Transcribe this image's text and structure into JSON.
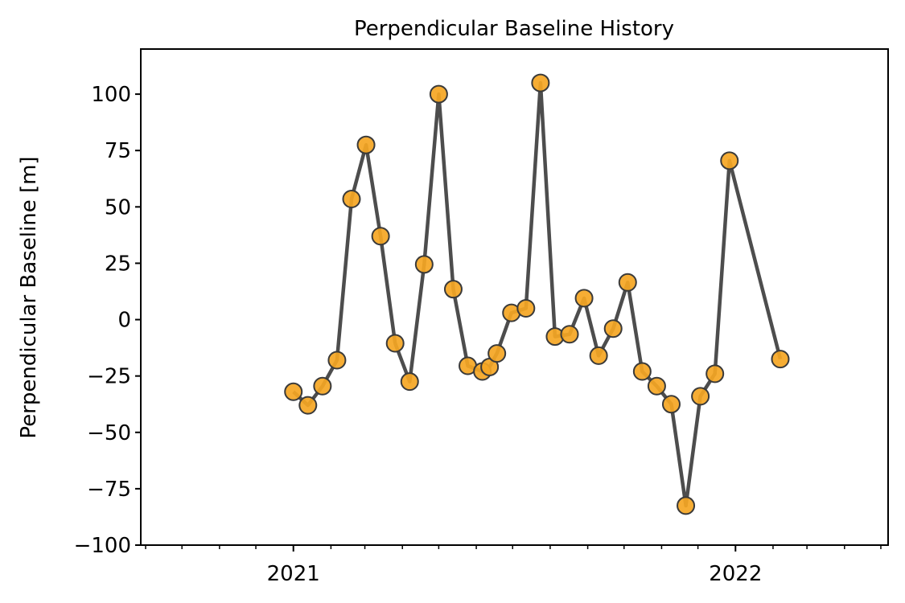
{
  "chart_data": {
    "type": "line",
    "title": "Perpendicular Baseline History",
    "xlabel": "",
    "ylabel": "Perpendicular Baseline [m]",
    "ylim": [
      -100,
      120
    ],
    "xlim": [
      "2020-08-28",
      "2022-05-07"
    ],
    "x_major_ticks": [
      "2021-01-01",
      "2022-01-01"
    ],
    "x_major_tick_labels": [
      "2021",
      "2022"
    ],
    "x_minor_ticks": [
      "2020-09-01",
      "2020-10-01",
      "2020-11-01",
      "2020-12-01",
      "2021-02-01",
      "2021-03-01",
      "2021-04-01",
      "2021-05-01",
      "2021-06-01",
      "2021-07-01",
      "2021-08-01",
      "2021-09-01",
      "2021-10-01",
      "2021-11-01",
      "2021-12-01",
      "2022-02-01",
      "2022-03-01",
      "2022-04-01",
      "2022-05-01"
    ],
    "y_ticks": [
      100,
      75,
      50,
      25,
      0,
      -25,
      -50,
      -75,
      -100
    ],
    "y_tick_labels": [
      "100",
      "75",
      "50",
      "25",
      "0",
      "−25",
      "−50",
      "−75",
      "−100"
    ],
    "grid": false,
    "line_color": "#4d4d4d",
    "marker_face_color": "#f5a623",
    "marker_edge_color": "#3a3a3a",
    "series": [
      {
        "x": [
          "2021-01-01",
          "2021-01-13",
          "2021-01-25",
          "2021-02-06",
          "2021-02-18",
          "2021-03-02",
          "2021-03-14",
          "2021-03-26",
          "2021-04-07",
          "2021-04-19",
          "2021-05-01",
          "2021-05-13",
          "2021-05-25",
          "2021-06-06",
          "2021-06-12",
          "2021-06-18",
          "2021-06-30",
          "2021-07-12",
          "2021-07-24",
          "2021-08-05",
          "2021-08-17",
          "2021-08-29",
          "2021-09-10",
          "2021-09-22",
          "2021-10-04",
          "2021-10-16",
          "2021-10-28",
          "2021-11-09",
          "2021-11-21",
          "2021-12-03",
          "2021-12-15",
          "2021-12-27",
          "2022-02-07"
        ],
        "values": [
          -32,
          -38,
          -29.5,
          -18,
          53.5,
          77.5,
          37,
          -10.5,
          -27.5,
          24.5,
          100,
          13.5,
          -20.5,
          -23,
          -21,
          -15,
          3,
          5,
          105,
          -7.5,
          -6.5,
          9.5,
          -16,
          -4,
          16.5,
          -23,
          -29.5,
          -37.5,
          -82.5,
          -34,
          -24,
          70.5,
          -17.5
        ]
      }
    ]
  }
}
